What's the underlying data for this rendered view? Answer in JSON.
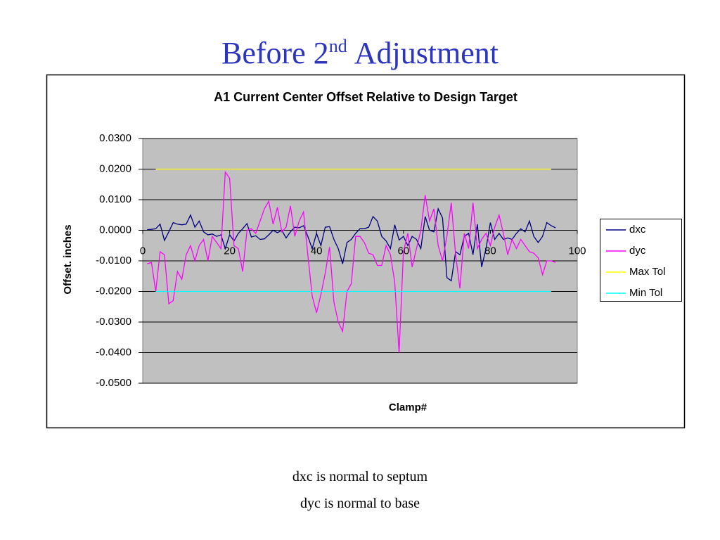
{
  "slide": {
    "title": [
      "Before 2",
      "nd",
      "Adjustment"
    ],
    "notes": [
      "dxc is normal to septum",
      "dyc is normal to base"
    ]
  },
  "chart_data": {
    "type": "line",
    "title": "A1 Current Center Offset  Relative to Design Target",
    "x_label": "Clamp#",
    "y_label": "Offset. inches",
    "x": [
      1,
      2,
      3,
      4,
      5,
      6,
      7,
      8,
      9,
      10,
      11,
      12,
      13,
      14,
      15,
      16,
      17,
      18,
      19,
      20,
      21,
      22,
      23,
      24,
      25,
      26,
      27,
      28,
      29,
      30,
      31,
      32,
      33,
      34,
      35,
      36,
      37,
      38,
      39,
      40,
      41,
      42,
      43,
      44,
      45,
      46,
      47,
      48,
      49,
      50,
      51,
      52,
      53,
      54,
      55,
      56,
      57,
      58,
      59,
      60,
      61,
      62,
      63,
      64,
      65,
      66,
      67,
      68,
      69,
      70,
      71,
      72,
      73,
      74,
      75,
      76,
      77,
      78,
      79,
      80,
      81,
      82,
      83,
      84,
      85,
      86,
      87,
      88,
      89,
      90,
      91,
      92,
      93,
      94,
      95
    ],
    "series": [
      {
        "name": "dxc",
        "color": "#000080",
        "values": [
          0.0002,
          0.0003,
          0.0005,
          0.002,
          -0.0033,
          -0.0005,
          0.0025,
          0.002,
          0.0018,
          0.002,
          0.005,
          0.001,
          0.003,
          -0.0005,
          -0.0015,
          -0.0012,
          -0.002,
          -0.0015,
          -0.006,
          -0.0015,
          -0.0035,
          -0.001,
          0.0005,
          0.0022,
          -0.0022,
          -0.0018,
          -0.003,
          -0.0028,
          -0.0015,
          0.0,
          -0.0008,
          0.0,
          -0.0025,
          -0.0005,
          0.001,
          0.0008,
          0.0015,
          -0.002,
          -0.006,
          -0.001,
          -0.005,
          0.001,
          0.0012,
          -0.003,
          -0.006,
          -0.011,
          -0.004,
          -0.003,
          -0.001,
          0.0005,
          0.0005,
          0.001,
          0.0045,
          0.003,
          -0.002,
          -0.0035,
          -0.006,
          0.0018,
          -0.0032,
          -0.002,
          -0.005,
          -0.002,
          -0.003,
          -0.006,
          0.0045,
          0.0,
          -0.0005,
          0.007,
          0.004,
          -0.0155,
          -0.0165,
          -0.007,
          -0.008,
          -0.002,
          -0.001,
          -0.008,
          0.002,
          -0.012,
          -0.006,
          0.0025,
          -0.003,
          -0.001,
          -0.003,
          -0.0025,
          -0.003,
          -0.001,
          0.0005,
          -0.0005,
          0.003,
          -0.002,
          -0.004,
          -0.002,
          0.0025,
          0.0015,
          0.0008
        ]
      },
      {
        "name": "dyc",
        "color": "#ff00ff",
        "values": [
          -0.011,
          -0.0105,
          -0.02,
          -0.007,
          -0.008,
          -0.024,
          -0.023,
          -0.0135,
          -0.016,
          -0.008,
          -0.005,
          -0.01,
          -0.005,
          -0.003,
          -0.01,
          -0.002,
          -0.004,
          -0.006,
          0.019,
          0.017,
          -0.005,
          -0.006,
          -0.0135,
          0.0,
          0.0005,
          -0.001,
          0.003,
          0.007,
          0.0095,
          0.002,
          0.0075,
          -0.0005,
          0.001,
          0.008,
          -0.002,
          0.003,
          0.006,
          -0.008,
          -0.0215,
          -0.027,
          -0.021,
          -0.014,
          -0.0055,
          -0.0235,
          -0.03,
          -0.033,
          -0.02,
          -0.0175,
          -0.002,
          -0.002,
          -0.004,
          -0.0075,
          -0.008,
          -0.0115,
          -0.0115,
          -0.005,
          -0.008,
          -0.017,
          -0.04,
          -0.007,
          -0.001,
          -0.012,
          -0.006,
          0.0,
          0.0115,
          0.003,
          0.007,
          -0.005,
          -0.01,
          -0.002,
          0.009,
          -0.008,
          -0.019,
          -0.001,
          -0.006,
          0.009,
          -0.006,
          -0.003,
          -0.001,
          -0.005,
          0.001,
          0.005,
          -0.001,
          -0.008,
          -0.003,
          -0.006,
          -0.003,
          -0.005,
          -0.007,
          -0.0075,
          -0.009,
          -0.0145,
          -0.01,
          -0.01,
          -0.0105
        ]
      },
      {
        "name": "Max Tol",
        "color": "#ffff00",
        "x": [
          3,
          94
        ],
        "values": [
          0.02,
          0.02
        ]
      },
      {
        "name": "Min Tol",
        "color": "#00ffff",
        "x": [
          3,
          94
        ],
        "values": [
          -0.02,
          -0.02
        ]
      }
    ],
    "xlim": [
      0,
      100
    ],
    "xticks": [
      0,
      20,
      40,
      60,
      80,
      100
    ],
    "ylim": [
      -0.05,
      0.03
    ],
    "yticks": [
      {
        "value": 0.03,
        "label": "0.0300"
      },
      {
        "value": 0.02,
        "label": "0.0200"
      },
      {
        "value": 0.01,
        "label": "0.0100"
      },
      {
        "value": 0,
        "label": "0.0000"
      },
      {
        "value": -0.01,
        "label": "-0.0100"
      },
      {
        "value": -0.02,
        "label": "-0.0200"
      },
      {
        "value": -0.03,
        "label": "-0.0300"
      },
      {
        "value": -0.04,
        "label": "-0.0400"
      },
      {
        "value": -0.05,
        "label": "-0.0500"
      }
    ],
    "grid": true,
    "legend": "right",
    "plot_background": "#c0c0c0"
  }
}
